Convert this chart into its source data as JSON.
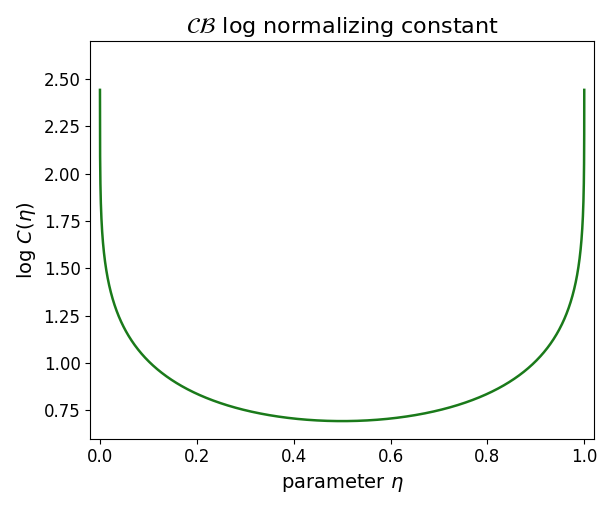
{
  "title": "$\\mathcal{CB}$ log normalizing constant",
  "xlabel": "parameter $\\eta$",
  "ylabel": "log $C(\\eta)$",
  "line_color": "#1a7a1a",
  "line_width": 1.8,
  "xlim": [
    -0.02,
    1.02
  ],
  "ylim": [
    0.6,
    2.7
  ],
  "x_ticks": [
    0.0,
    0.2,
    0.4,
    0.6,
    0.8,
    1.0
  ],
  "y_ticks": [
    0.75,
    1.0,
    1.25,
    1.5,
    1.75,
    2.0,
    2.25,
    2.5
  ],
  "title_fontsize": 16,
  "label_fontsize": 14,
  "tick_fontsize": 12,
  "figsize": [
    6.13,
    5.09
  ],
  "dpi": 100
}
